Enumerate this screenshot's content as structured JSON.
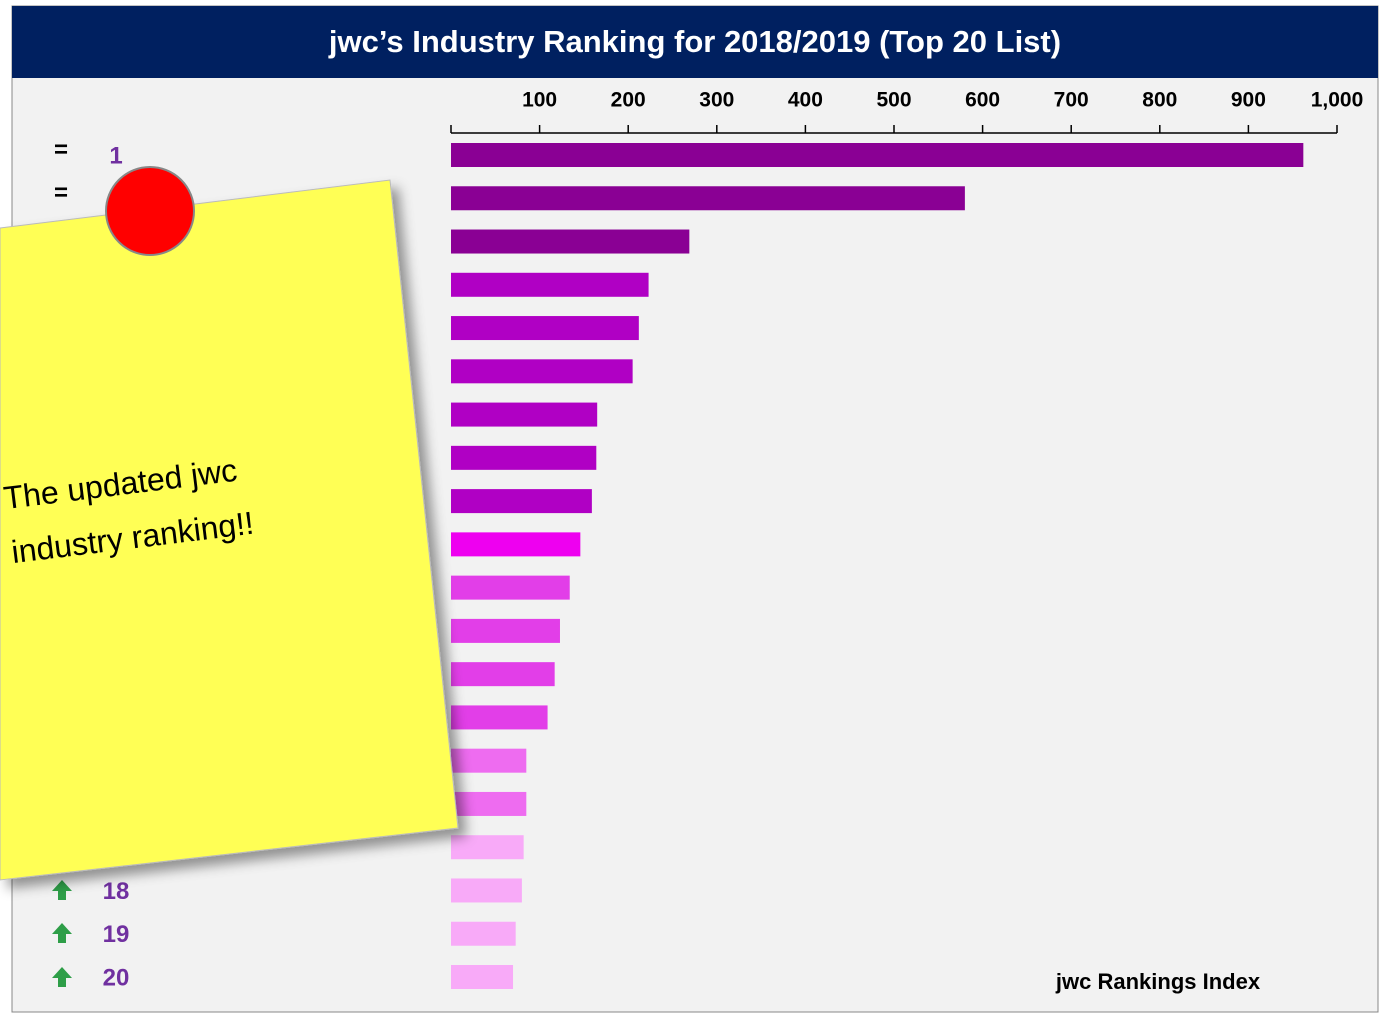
{
  "chart_data": {
    "type": "bar",
    "orientation": "horizontal",
    "title": "jwc’s Industry Ranking for 2018/2019 (Top 20 List)",
    "x_label": "jwc Rankings Index",
    "categories": [
      "1",
      null,
      null,
      null,
      null,
      null,
      null,
      null,
      null,
      null,
      null,
      null,
      null,
      null,
      null,
      null,
      null,
      "18",
      "19",
      "20"
    ],
    "movement": [
      "=",
      "=",
      null,
      null,
      null,
      null,
      null,
      null,
      null,
      null,
      null,
      null,
      null,
      null,
      null,
      null,
      null,
      null,
      null,
      null
    ],
    "values": [
      962,
      580,
      269,
      223,
      212,
      205,
      165,
      164,
      159,
      146,
      134,
      123,
      117,
      109,
      85,
      85,
      82,
      80,
      73,
      70
    ],
    "colors": [
      "#8a0094",
      "#8a0094",
      "#8a0094",
      "#b000c4",
      "#b000c4",
      "#b000c4",
      "#b000c4",
      "#b000c4",
      "#b000c4",
      "#ee00f0",
      "#e23ee8",
      "#e23ee8",
      "#e23ee8",
      "#e23ee8",
      "#ee6cf0",
      "#ee6cf0",
      "#f8aaf8",
      "#f8aaf8",
      "#f8aaf8",
      "#f8aaf8"
    ],
    "xlim": [
      0,
      1000
    ],
    "xticks": [
      100,
      200,
      300,
      400,
      500,
      600,
      700,
      800,
      900,
      {
        "value": 1000,
        "label": "1,000"
      }
    ],
    "annotation": [
      "The updated jwc",
      "industry ranking!!"
    ]
  }
}
